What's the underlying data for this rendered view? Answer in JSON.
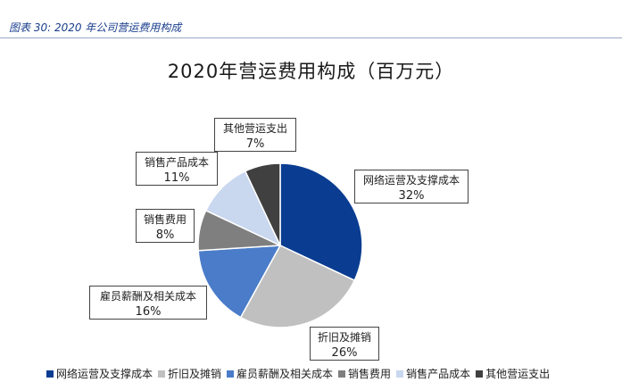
{
  "header": {
    "caption": "图表 30:  2020 年公司营运费用构成"
  },
  "chart_data": {
    "type": "pie",
    "title": "2020年营运费用构成（百万元）",
    "slices": [
      {
        "label": "网络运营及支撑成本",
        "value": 32,
        "pct_label": "32%",
        "color": "#0a3d91"
      },
      {
        "label": "折旧及摊销",
        "value": 26,
        "pct_label": "26%",
        "color": "#c0c0c0"
      },
      {
        "label": "雇员薪酬及相关成本",
        "value": 16,
        "pct_label": "16%",
        "color": "#4a7cc9"
      },
      {
        "label": "销售费用",
        "value": 8,
        "pct_label": "8%",
        "color": "#7f7f7f"
      },
      {
        "label": "销售产品成本",
        "value": 11,
        "pct_label": "11%",
        "color": "#c9d7ef"
      },
      {
        "label": "其他营运支出",
        "value": 7,
        "pct_label": "7%",
        "color": "#404040"
      }
    ],
    "legend_position": "bottom"
  }
}
